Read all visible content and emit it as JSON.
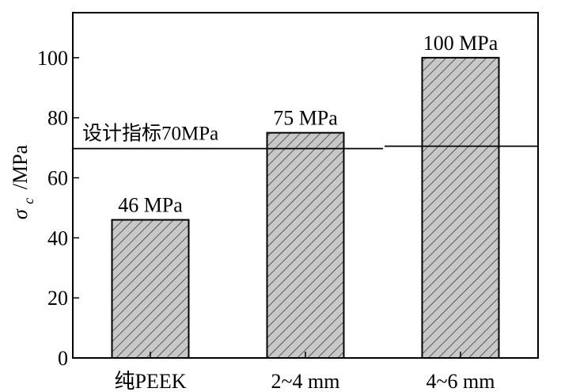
{
  "chart_data": {
    "type": "bar",
    "categories": [
      "纯PEEK",
      "2~4 mm",
      "4~6 mm"
    ],
    "values": [
      46,
      75,
      100
    ],
    "data_labels": [
      "46 MPa",
      "75 MPa",
      "100 MPa"
    ],
    "ylabel": {
      "symbol": "σ",
      "subscript": "c",
      "unit": "/MPa"
    },
    "ylim": [
      0,
      115
    ],
    "yticks": [
      0,
      20,
      40,
      60,
      80,
      100
    ],
    "reference_line": {
      "value": 70,
      "label": "设计指标70MPa"
    },
    "bar_fill": "#c8c8c8",
    "hatch": "diagonal",
    "grid": false
  }
}
